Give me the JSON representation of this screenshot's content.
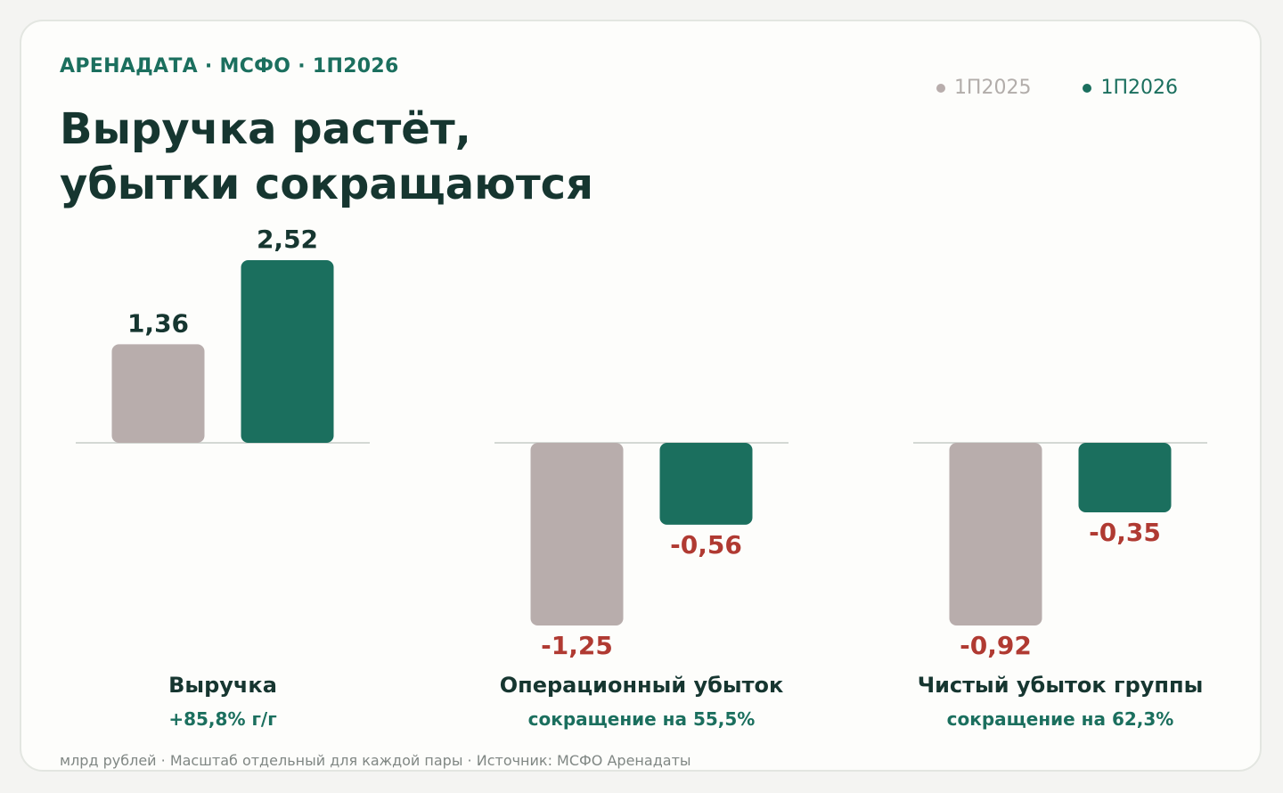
{
  "header": {
    "eyebrow": "АРЕНАДАТА · МСФО · 1П2026",
    "title_line1": "Выручка растёт,",
    "title_line2": "убытки сокращаются"
  },
  "legend": [
    {
      "label": "1П2025",
      "color": "#b8adac",
      "text_color": "#b2adaa"
    },
    {
      "label": "1П2026",
      "color": "#1b6f5e",
      "text_color": "#1b6f5e"
    }
  ],
  "colors": {
    "positive_label": "#163630",
    "negative_label": "#b03a32",
    "baseline": "#d4d8d4"
  },
  "chart_data": {
    "type": "bar",
    "note": "Масштаб отдельный для каждой пары",
    "series_names": [
      "1П2025",
      "1П2026"
    ],
    "groups": [
      {
        "category": "Выручка",
        "change": "+85,8% г/г",
        "values": [
          1.36,
          2.52
        ],
        "labels": [
          "1,36",
          "2,52"
        ]
      },
      {
        "category": "Операционный убыток",
        "change": "сокращение на 55,5%",
        "values": [
          -1.25,
          -0.56
        ],
        "labels": [
          "-1,25",
          "-0,56"
        ]
      },
      {
        "category": "Чистый убыток группы",
        "change": "сокращение на 62,3%",
        "values": [
          -0.92,
          -0.35
        ],
        "labels": [
          "-0,92",
          "-0,35"
        ]
      }
    ]
  },
  "footnote": "млрд рублей · Масштаб отдельный для каждой пары · Источник: МСФО Аренадаты"
}
